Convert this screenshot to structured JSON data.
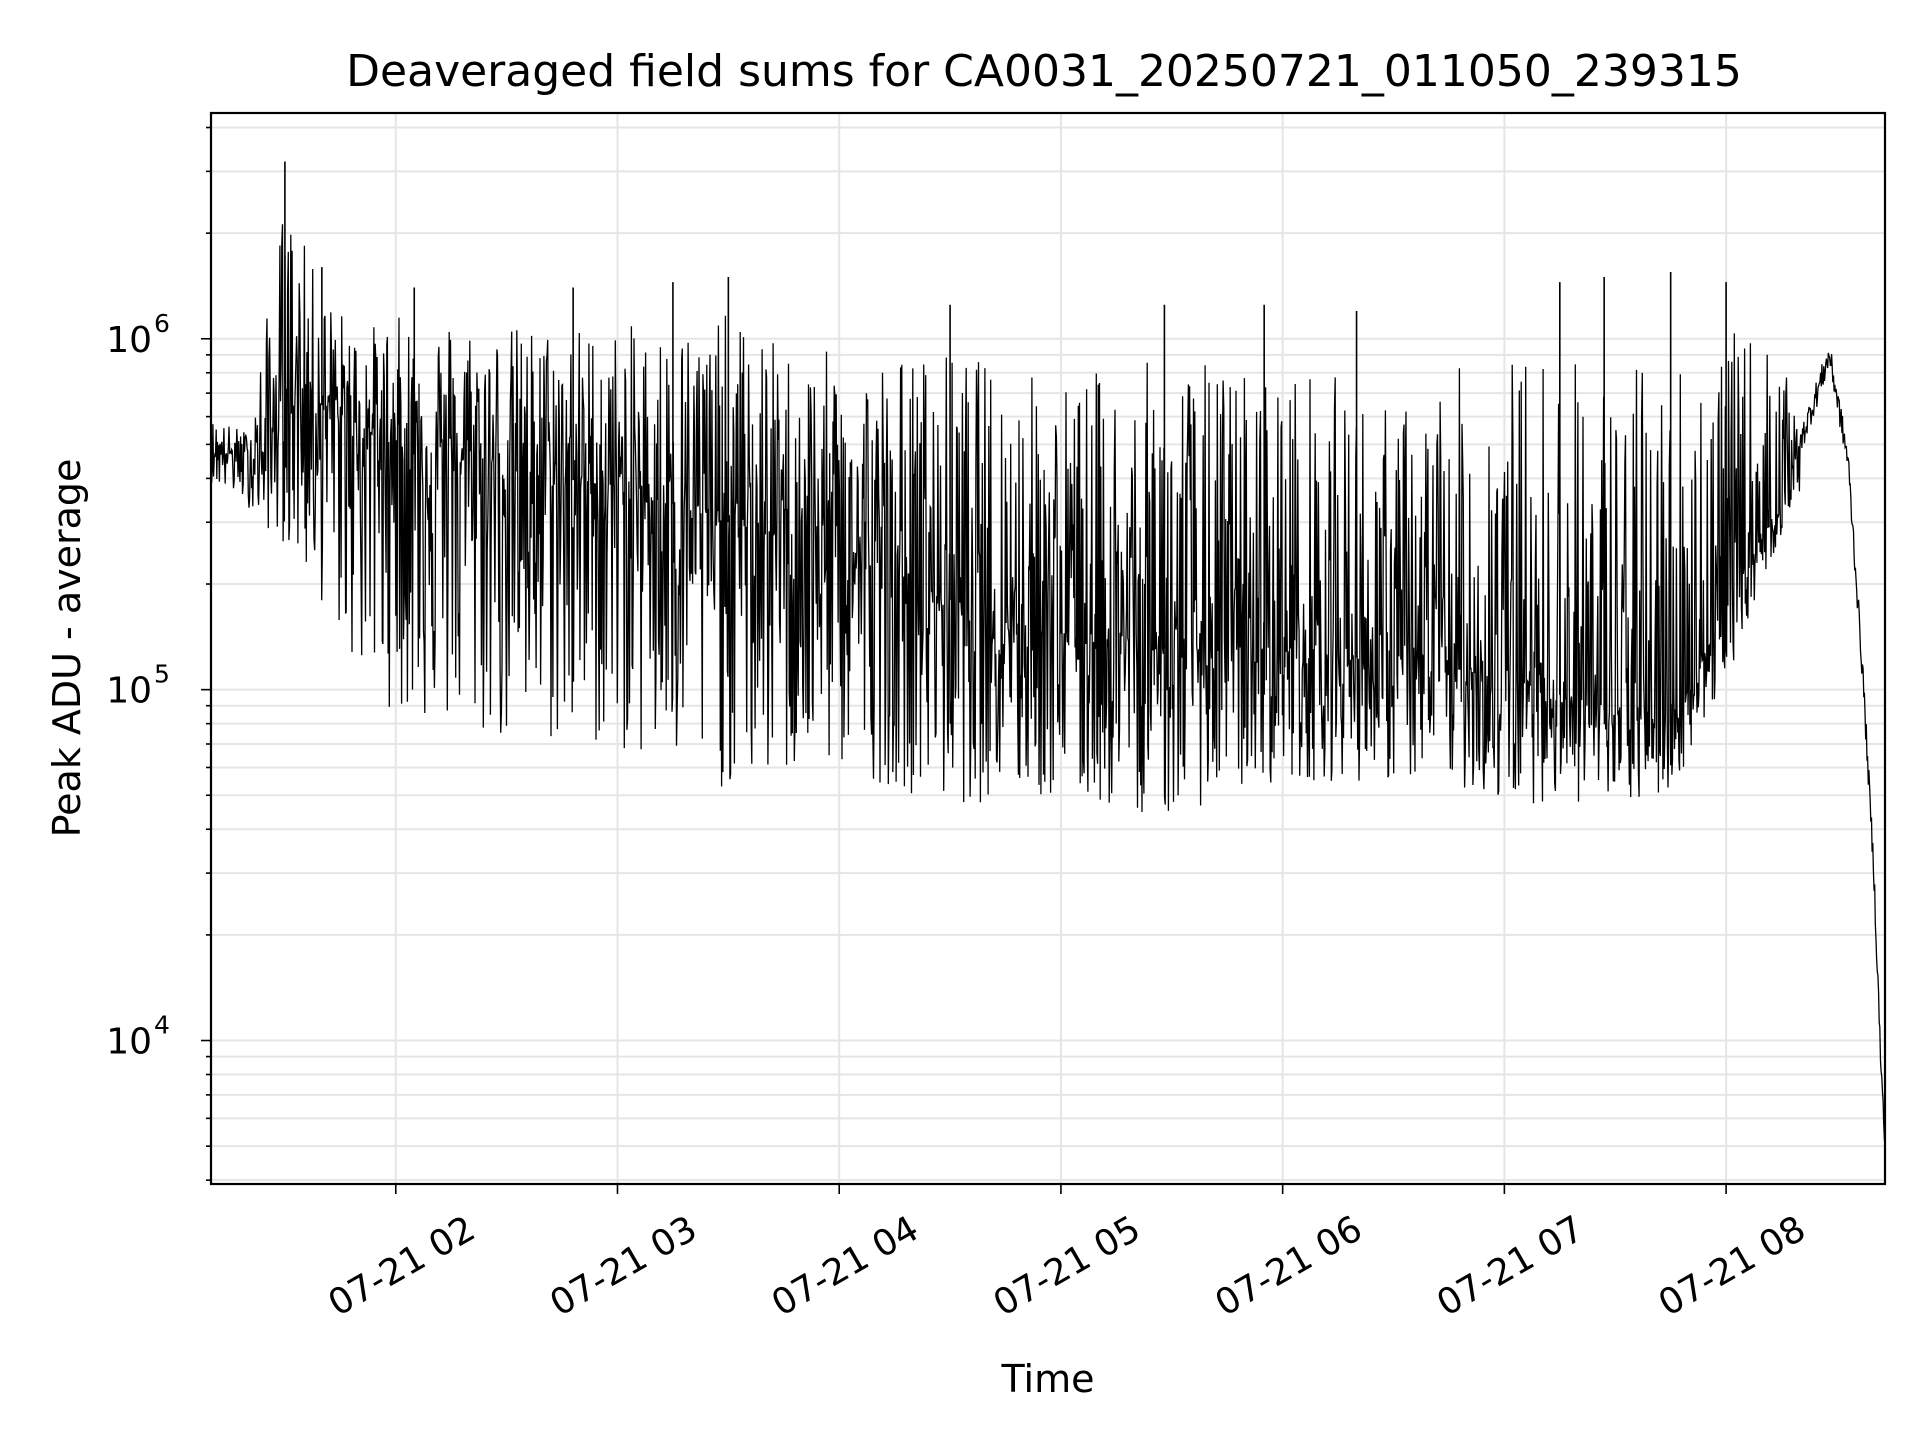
{
  "chart_data": {
    "type": "line",
    "title": "Deaveraged field sums for CA0031_20250721_011050_239315",
    "xlabel": "Time",
    "ylabel": "Peak ADU - average",
    "yscale": "log",
    "ylim": [
      3900,
      4400000
    ],
    "xlim": [
      "2025-07-21 01:10",
      "2025-07-21 08:43"
    ],
    "grid": true,
    "line_color": "#000000",
    "grid_color": "#e5e5e5",
    "x_ticks": [
      {
        "value": "2025-07-21 02:00",
        "label": "07-21 02"
      },
      {
        "value": "2025-07-21 03:00",
        "label": "07-21 03"
      },
      {
        "value": "2025-07-21 04:00",
        "label": "07-21 04"
      },
      {
        "value": "2025-07-21 05:00",
        "label": "07-21 05"
      },
      {
        "value": "2025-07-21 06:00",
        "label": "07-21 06"
      },
      {
        "value": "2025-07-21 07:00",
        "label": "07-21 07"
      },
      {
        "value": "2025-07-21 08:00",
        "label": "07-21 08"
      }
    ],
    "y_ticks": [
      {
        "value": 10000,
        "base": "10",
        "exp": "4"
      },
      {
        "value": 100000,
        "base": "10",
        "exp": "5"
      },
      {
        "value": 1000000,
        "base": "10",
        "exp": "6"
      }
    ],
    "envelope": [
      {
        "x": "2025-07-21 01:10",
        "high": 620000,
        "low": 380000
      },
      {
        "x": "2025-07-21 01:20",
        "high": 560000,
        "low": 320000
      },
      {
        "x": "2025-07-21 01:30",
        "high": 3200000,
        "low": 230000
      },
      {
        "x": "2025-07-21 01:40",
        "high": 1600000,
        "low": 150000
      },
      {
        "x": "2025-07-21 01:50",
        "high": 1200000,
        "low": 90000
      },
      {
        "x": "2025-07-21 02:00",
        "high": 1350000,
        "low": 70000
      },
      {
        "x": "2025-07-21 02:15",
        "high": 1400000,
        "low": 60000
      },
      {
        "x": "2025-07-21 02:30",
        "high": 1300000,
        "low": 55000
      },
      {
        "x": "2025-07-21 02:45",
        "high": 1350000,
        "low": 55000
      },
      {
        "x": "2025-07-21 03:00",
        "high": 1300000,
        "low": 55000
      },
      {
        "x": "2025-07-21 03:15",
        "high": 1400000,
        "low": 45000
      },
      {
        "x": "2025-07-21 03:30",
        "high": 1500000,
        "low": 42000
      },
      {
        "x": "2025-07-21 03:45",
        "high": 1200000,
        "low": 45000
      },
      {
        "x": "2025-07-21 04:00",
        "high": 1150000,
        "low": 50000
      },
      {
        "x": "2025-07-21 04:15",
        "high": 1200000,
        "low": 45000
      },
      {
        "x": "2025-07-21 04:30",
        "high": 1250000,
        "low": 40000
      },
      {
        "x": "2025-07-21 04:45",
        "high": 1150000,
        "low": 42000
      },
      {
        "x": "2025-07-21 05:00",
        "high": 1050000,
        "low": 42000
      },
      {
        "x": "2025-07-21 05:15",
        "high": 1150000,
        "low": 40000
      },
      {
        "x": "2025-07-21 05:30",
        "high": 1250000,
        "low": 38000
      },
      {
        "x": "2025-07-21 05:45",
        "high": 1200000,
        "low": 45000
      },
      {
        "x": "2025-07-21 06:00",
        "high": 1200000,
        "low": 50000
      },
      {
        "x": "2025-07-21 06:15",
        "high": 1100000,
        "low": 50000
      },
      {
        "x": "2025-07-21 06:30",
        "high": 850000,
        "low": 50000
      },
      {
        "x": "2025-07-21 06:45",
        "high": 1150000,
        "low": 50000
      },
      {
        "x": "2025-07-21 07:00",
        "high": 1350000,
        "low": 42000
      },
      {
        "x": "2025-07-21 07:15",
        "high": 1450000,
        "low": 45000
      },
      {
        "x": "2025-07-21 07:30",
        "high": 1200000,
        "low": 42000
      },
      {
        "x": "2025-07-21 07:45",
        "high": 1500000,
        "low": 48000
      },
      {
        "x": "2025-07-21 08:00",
        "high": 1450000,
        "low": 100000
      },
      {
        "x": "2025-07-21 08:10",
        "high": 1300000,
        "low": 200000
      },
      {
        "x": "2025-07-21 08:20",
        "high": 700000,
        "low": 350000
      },
      {
        "x": "2025-07-21 08:28",
        "high": 950000,
        "low": 600000
      },
      {
        "x": "2025-07-21 08:33",
        "high": 600000,
        "low": 350000
      },
      {
        "x": "2025-07-21 08:37",
        "high": 150000,
        "low": 90000
      },
      {
        "x": "2025-07-21 08:40",
        "high": 50000,
        "low": 25000
      },
      {
        "x": "2025-07-21 08:42",
        "high": 12000,
        "low": 6000
      },
      {
        "x": "2025-07-21 08:43",
        "high": 20000,
        "low": 5000
      }
    ],
    "trend": [
      {
        "x": "2025-07-21 01:10",
        "y": 480000
      },
      {
        "x": "2025-07-21 01:25",
        "y": 460000
      },
      {
        "x": "2025-07-21 01:30",
        "y": 750000
      },
      {
        "x": "2025-07-21 01:45",
        "y": 600000
      },
      {
        "x": "2025-07-21 02:00",
        "y": 500000
      },
      {
        "x": "2025-07-21 02:30",
        "y": 420000
      },
      {
        "x": "2025-07-21 03:00",
        "y": 380000
      },
      {
        "x": "2025-07-21 03:30",
        "y": 300000
      },
      {
        "x": "2025-07-21 04:00",
        "y": 250000
      },
      {
        "x": "2025-07-21 04:30",
        "y": 180000
      },
      {
        "x": "2025-07-21 05:00",
        "y": 150000
      },
      {
        "x": "2025-07-21 05:30",
        "y": 130000
      },
      {
        "x": "2025-07-21 06:00",
        "y": 130000
      },
      {
        "x": "2025-07-21 06:30",
        "y": 120000
      },
      {
        "x": "2025-07-21 07:00",
        "y": 110000
      },
      {
        "x": "2025-07-21 07:30",
        "y": 85000
      },
      {
        "x": "2025-07-21 07:45",
        "y": 80000
      },
      {
        "x": "2025-07-21 08:00",
        "y": 170000
      },
      {
        "x": "2025-07-21 08:15",
        "y": 350000
      },
      {
        "x": "2025-07-21 08:28",
        "y": 900000
      },
      {
        "x": "2025-07-21 08:33",
        "y": 450000
      },
      {
        "x": "2025-07-21 08:37",
        "y": 110000
      },
      {
        "x": "2025-07-21 08:40",
        "y": 30000
      },
      {
        "x": "2025-07-21 08:42",
        "y": 8000
      },
      {
        "x": "2025-07-21 08:43",
        "y": 5000
      }
    ],
    "spikes": [
      {
        "x": "2025-07-21 01:30",
        "y": 3200000
      },
      {
        "x": "2025-07-21 01:40",
        "y": 1600000
      },
      {
        "x": "2025-07-21 02:05",
        "y": 1400000
      },
      {
        "x": "2025-07-21 02:48",
        "y": 1400000
      },
      {
        "x": "2025-07-21 03:15",
        "y": 1450000
      },
      {
        "x": "2025-07-21 03:30",
        "y": 1500000
      },
      {
        "x": "2025-07-21 04:30",
        "y": 1250000
      },
      {
        "x": "2025-07-21 05:28",
        "y": 1250000
      },
      {
        "x": "2025-07-21 05:55",
        "y": 1250000
      },
      {
        "x": "2025-07-21 06:20",
        "y": 1200000
      },
      {
        "x": "2025-07-21 07:15",
        "y": 1450000
      },
      {
        "x": "2025-07-21 07:27",
        "y": 1500000
      },
      {
        "x": "2025-07-21 07:45",
        "y": 1550000
      },
      {
        "x": "2025-07-21 08:00",
        "y": 1450000
      }
    ]
  }
}
